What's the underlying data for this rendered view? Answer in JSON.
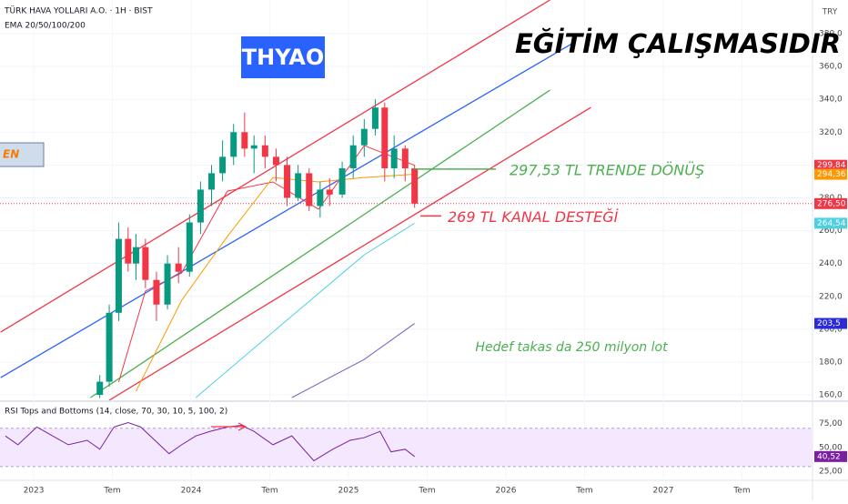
{
  "chart_data": [
    {
      "type": "candlestick",
      "title": "TÜRK HAVA YOLLARI A.O. · 1H · BIST",
      "subtitle": "EMA 20/50/100/200",
      "currency": "TRY",
      "badge": "THYAO",
      "heading": "EĞİTİM ÇALIŞMASIDIR",
      "side_note": "EN",
      "note": "Hedef takas da 250 milyon lot",
      "xlim": [
        2022.786,
        2027.948
      ],
      "xticks": [
        {
          "value": 2023,
          "label": "2023"
        },
        {
          "value": 2023.5,
          "label": "Tem"
        },
        {
          "value": 2024,
          "label": "2024"
        },
        {
          "value": 2024.5,
          "label": "Tem"
        },
        {
          "value": 2025,
          "label": "2025"
        },
        {
          "value": 2025.5,
          "label": "Tem"
        },
        {
          "value": 2026,
          "label": "2026"
        },
        {
          "value": 2026.5,
          "label": "Tem"
        },
        {
          "value": 2027,
          "label": "2027"
        },
        {
          "value": 2027.5,
          "label": "Tem"
        }
      ],
      "ylim": [
        156.7,
        400.5
      ],
      "yticks": [
        {
          "value": 160,
          "label": "160,0"
        },
        {
          "value": 180,
          "label": "180,0"
        },
        {
          "value": 200,
          "label": "200,0"
        },
        {
          "value": 220,
          "label": "220,0"
        },
        {
          "value": 240,
          "label": "240,0"
        },
        {
          "value": 260,
          "label": "260,0"
        },
        {
          "value": 280,
          "label": "280,0"
        },
        {
          "value": 300,
          "label": "300,0"
        },
        {
          "value": 320,
          "label": "320,0"
        },
        {
          "value": 340,
          "label": "340,0"
        },
        {
          "value": 360,
          "label": "360,0"
        },
        {
          "value": 380,
          "label": "380,0"
        }
      ],
      "up_color": "#089981",
      "down_color": "#f23645",
      "candles": {
        "x": [
          2023.42,
          2023.48,
          2023.54,
          2023.6,
          2023.65,
          2023.71,
          2023.78,
          2023.85,
          2023.92,
          2023.99,
          2024.06,
          2024.13,
          2024.2,
          2024.27,
          2024.34,
          2024.4,
          2024.47,
          2024.54,
          2024.61,
          2024.68,
          2024.75,
          2024.82,
          2024.88,
          2024.96,
          2025.03,
          2025.1,
          2025.17,
          2025.23,
          2025.29,
          2025.36,
          2025.42
        ],
        "open": [
          160,
          168,
          210,
          255,
          240,
          250,
          230,
          215,
          240,
          235,
          265,
          285,
          295,
          305,
          320,
          310,
          312,
          305,
          300,
          280,
          295,
          275,
          285,
          282,
          298,
          312,
          322,
          335,
          298,
          310,
          298
        ],
        "high": [
          172,
          215,
          265,
          262,
          258,
          255,
          235,
          245,
          250,
          270,
          290,
          300,
          315,
          325,
          332,
          318,
          318,
          310,
          305,
          300,
          298,
          290,
          292,
          302,
          318,
          328,
          340,
          338,
          318,
          312,
          300
        ],
        "low": [
          158,
          165,
          205,
          235,
          230,
          225,
          205,
          212,
          228,
          232,
          258,
          275,
          290,
          300,
          305,
          295,
          298,
          290,
          275,
          278,
          272,
          268,
          275,
          280,
          292,
          305,
          318,
          290,
          292,
          290,
          274
        ],
        "close": [
          168,
          210,
          255,
          240,
          250,
          230,
          215,
          240,
          235,
          265,
          285,
          295,
          305,
          320,
          310,
          312,
          305,
          300,
          280,
          295,
          275,
          285,
          282,
          298,
          312,
          322,
          335,
          298,
          310,
          298,
          276.5
        ]
      },
      "series": [
        {
          "name": "EMA 20",
          "color": "#f23645",
          "x": [
            2023.54,
            2023.71,
            2023.94,
            2024.23,
            2024.52,
            2024.81,
            2025.1,
            2025.42
          ],
          "values": [
            167.8,
            223.2,
            234.3,
            284.1,
            289.7,
            273.1,
            311.8,
            299.84
          ]
        },
        {
          "name": "EMA 50",
          "color": "#ff9800",
          "x": [
            2023.65,
            2023.94,
            2024.23,
            2024.52,
            2024.81,
            2025.1,
            2025.42
          ],
          "values": [
            162.2,
            217.6,
            256.4,
            292.4,
            289.7,
            292.4,
            294.36
          ]
        },
        {
          "name": "EMA 100",
          "color": "#4dd0e1",
          "x": [
            2024.03,
            2024.69,
            2025.1,
            2025.42
          ],
          "values": [
            158.3,
            212.1,
            245.3,
            264.54
          ]
        },
        {
          "name": "EMA 200",
          "color": "#7e57c2",
          "x": [
            2024.64,
            2025.1,
            2025.42
          ],
          "values": [
            158.3,
            181.6,
            203.5
          ]
        }
      ],
      "trend_lines": [
        {
          "color": "#f23645",
          "x1": 2022.79,
          "y1": 198.2,
          "x2": 2026.28,
          "y2": 400.5
        },
        {
          "color": "#2962ff",
          "x1": 2022.79,
          "y1": 170.5,
          "x2": 2026.43,
          "y2": 374.5
        },
        {
          "color": "#4caf50",
          "x1": 2023.36,
          "y1": 158.3,
          "x2": 2026.28,
          "y2": 345.6
        },
        {
          "color": "#f23645",
          "x1": 2023.48,
          "y1": 156.7,
          "x2": 2026.54,
          "y2": 335.1
        }
      ],
      "annotations": [
        {
          "text": "297,53 TL TRENDE DÖNÜŞ",
          "value": 297.53,
          "color": "#4caf50"
        },
        {
          "text": "269 TL KANAL DESTEĞİ",
          "value": 269,
          "color": "#f23645"
        }
      ],
      "last_price": 276.5,
      "price_labels": [
        {
          "value": 299.84,
          "label": "299,84",
          "color": "#f23645"
        },
        {
          "value": 294.36,
          "label": "294,36",
          "color": "#ff9800"
        },
        {
          "value": 276.5,
          "label": "276,50",
          "color": "#f23645"
        },
        {
          "value": 264.54,
          "label": "264,54",
          "color": "#4dd0e1"
        },
        {
          "value": 203.5,
          "label": "203,5",
          "color": "#2a2ad8"
        }
      ]
    },
    {
      "type": "line",
      "title": "RSI Tops and Bottoms (14, close, 70, 30, 10, 5, 100, 2)",
      "ylim": [
        15.7,
        96.3
      ],
      "yticks": [
        {
          "value": 25,
          "label": "25,00"
        },
        {
          "value": 50,
          "label": "50,00"
        },
        {
          "value": 75,
          "label": "75,00"
        }
      ],
      "band": [
        30,
        70
      ],
      "series": [
        {
          "name": "RSI",
          "color": "#7b1fa2",
          "x": [
            2022.82,
            2022.9,
            2023.02,
            2023.1,
            2023.22,
            2023.34,
            2023.42,
            2023.51,
            2023.6,
            2023.68,
            2023.77,
            2023.86,
            2023.94,
            2024.03,
            2024.12,
            2024.23,
            2024.32,
            2024.4,
            2024.52,
            2024.64,
            2024.78,
            2024.9,
            2025.01,
            2025.1,
            2025.2,
            2025.27,
            2025.36,
            2025.42
          ],
          "values": [
            62.0,
            52.8,
            71.3,
            63.9,
            52.8,
            57.4,
            48.1,
            71.3,
            75.9,
            71.3,
            57.4,
            43.5,
            52.8,
            62.0,
            66.7,
            71.3,
            73.1,
            66.7,
            52.8,
            62.0,
            36.1,
            48.1,
            57.4,
            60.2,
            66.7,
            45.4,
            48.1,
            40.52
          ]
        }
      ],
      "price_labels": [
        {
          "value": 40.52,
          "label": "40,52",
          "color": "#7b1fa2"
        }
      ]
    }
  ]
}
